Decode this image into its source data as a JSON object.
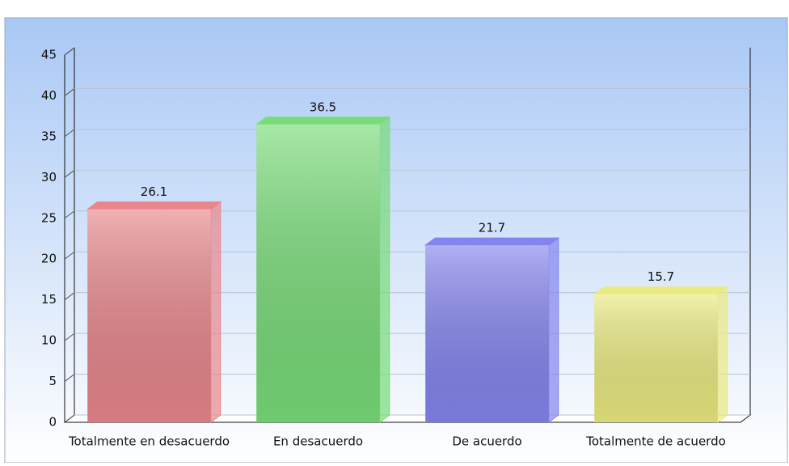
{
  "chart_data": {
    "type": "bar3d",
    "categories": [
      "Totalmente en desacuerdo",
      "En desacuerdo",
      "De acuerdo",
      "Totalmente de acuerdo"
    ],
    "values": [
      26.1,
      36.5,
      21.7,
      15.7
    ],
    "colors": [
      "#e8868c",
      "#78dc78",
      "#8484ee",
      "#eaea80"
    ],
    "ylim": [
      0,
      45
    ],
    "yticks": [
      0,
      5,
      10,
      15,
      20,
      25,
      30,
      35,
      40,
      45
    ],
    "grid": true
  }
}
